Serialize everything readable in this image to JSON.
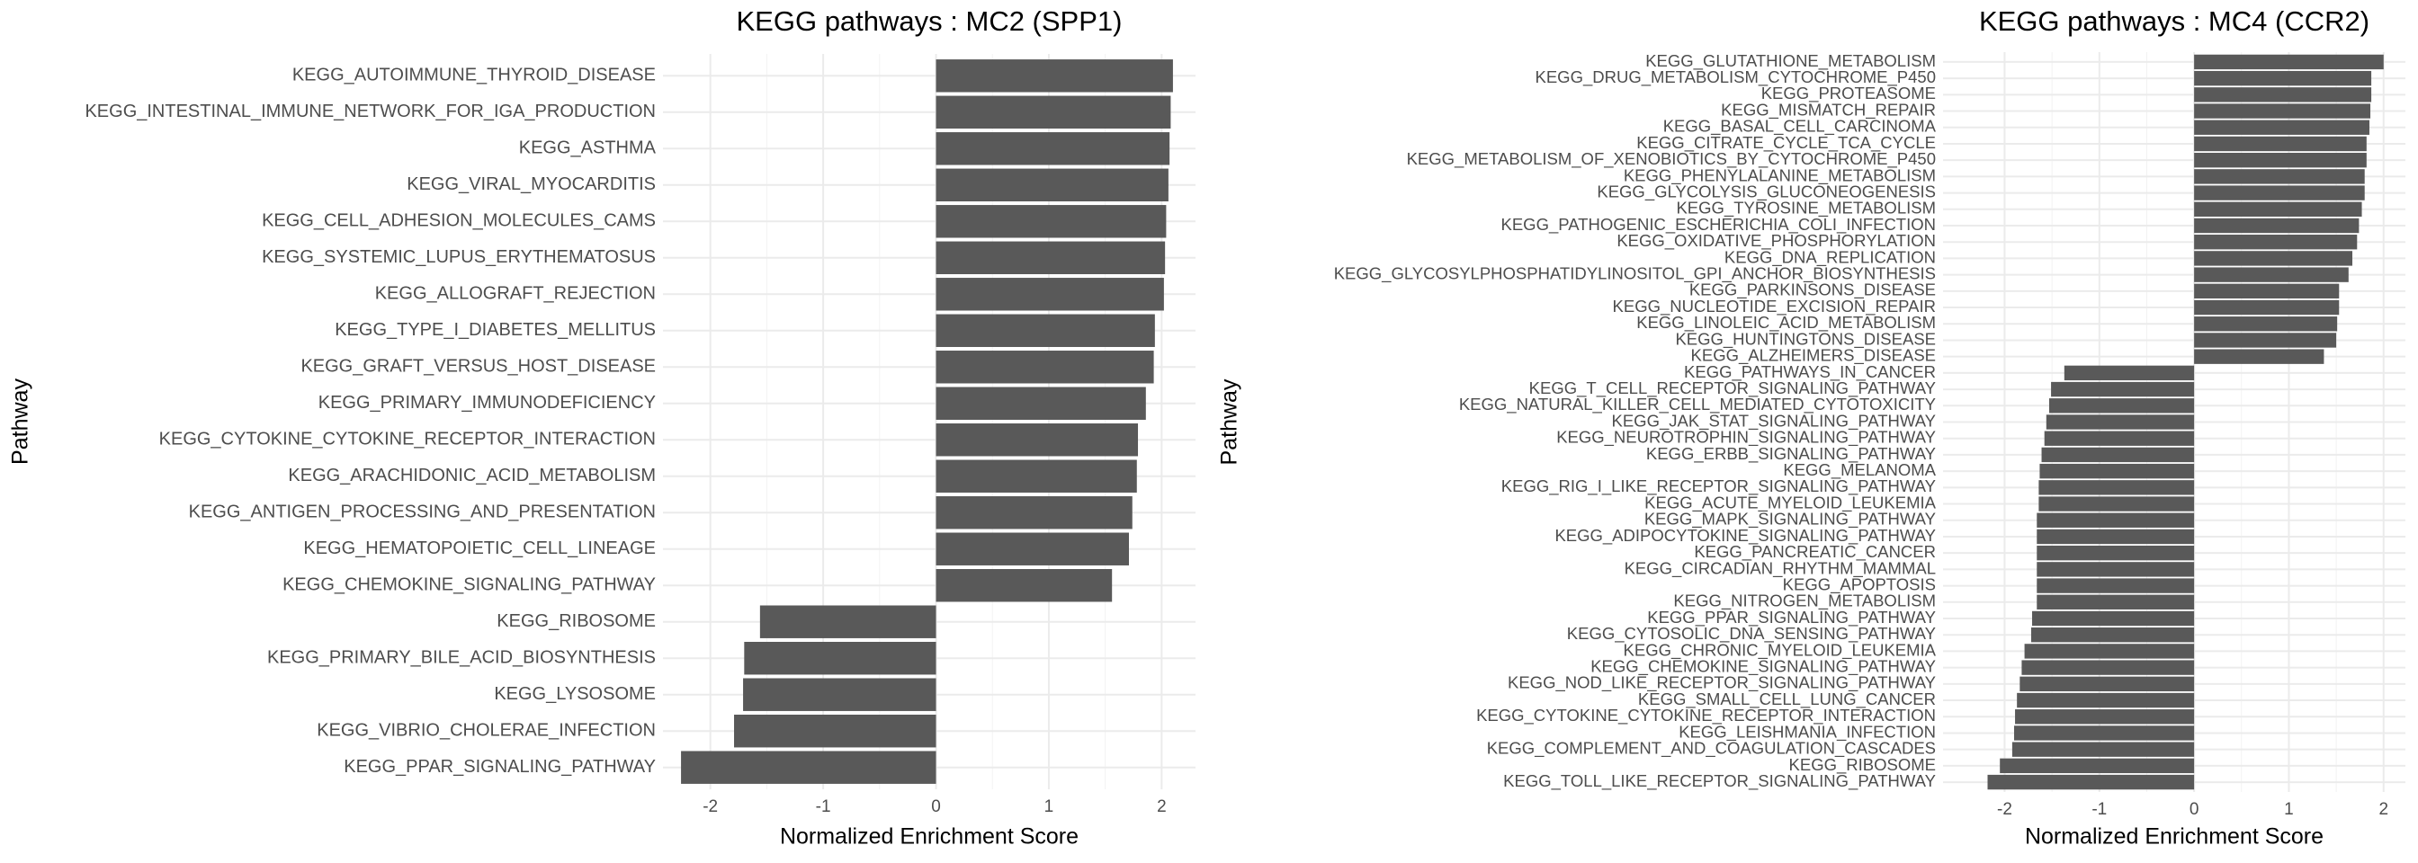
{
  "chart_data": [
    {
      "type": "bar",
      "orientation": "horizontal",
      "title": "KEGG pathways : MC2 (SPP1)",
      "x_label": "Normalized Enrichment Score",
      "y_label": "Pathway",
      "color": "#595959",
      "grid": true,
      "categories": [
        "KEGG_AUTOIMMUNE_THYROID_DISEASE",
        "KEGG_INTESTINAL_IMMUNE_NETWORK_FOR_IGA_PRODUCTION",
        "KEGG_ASTHMA",
        "KEGG_VIRAL_MYOCARDITIS",
        "KEGG_CELL_ADHESION_MOLECULES_CAMS",
        "KEGG_SYSTEMIC_LUPUS_ERYTHEMATOSUS",
        "KEGG_ALLOGRAFT_REJECTION",
        "KEGG_TYPE_I_DIABETES_MELLITUS",
        "KEGG_GRAFT_VERSUS_HOST_DISEASE",
        "KEGG_PRIMARY_IMMUNODEFICIENCY",
        "KEGG_CYTOKINE_CYTOKINE_RECEPTOR_INTERACTION",
        "KEGG_ARACHIDONIC_ACID_METABOLISM",
        "KEGG_ANTIGEN_PROCESSING_AND_PRESENTATION",
        "KEGG_HEMATOPOIETIC_CELL_LINEAGE",
        "KEGG_CHEMOKINE_SIGNALING_PATHWAY",
        "KEGG_RIBOSOME",
        "KEGG_PRIMARY_BILE_ACID_BIOSYNTHESIS",
        "KEGG_LYSOSOME",
        "KEGG_VIBRIO_CHOLERAE_INFECTION",
        "KEGG_PPAR_SIGNALING_PATHWAY"
      ],
      "values": [
        2.1,
        2.08,
        2.07,
        2.06,
        2.04,
        2.03,
        2.02,
        1.94,
        1.93,
        1.86,
        1.79,
        1.78,
        1.74,
        1.71,
        1.56,
        -1.56,
        -1.7,
        -1.71,
        -1.79,
        -2.26
      ],
      "xlim": [
        -2.42,
        2.3
      ],
      "xticks": [
        -2,
        -1,
        0,
        1,
        2
      ]
    },
    {
      "type": "bar",
      "orientation": "horizontal",
      "title": "KEGG pathways : MC4 (CCR2)",
      "x_label": "Normalized Enrichment Score",
      "y_label": "Pathway",
      "color": "#595959",
      "grid": true,
      "categories": [
        "KEGG_GLUTATHIONE_METABOLISM",
        "KEGG_DRUG_METABOLISM_CYTOCHROME_P450",
        "KEGG_PROTEASOME",
        "KEGG_MISMATCH_REPAIR",
        "KEGG_BASAL_CELL_CARCINOMA",
        "KEGG_CITRATE_CYCLE_TCA_CYCLE",
        "KEGG_METABOLISM_OF_XENOBIOTICS_BY_CYTOCHROME_P450",
        "KEGG_PHENYLALANINE_METABOLISM",
        "KEGG_GLYCOLYSIS_GLUCONEOGENESIS",
        "KEGG_TYROSINE_METABOLISM",
        "KEGG_PATHOGENIC_ESCHERICHIA_COLI_INFECTION",
        "KEGG_OXIDATIVE_PHOSPHORYLATION",
        "KEGG_DNA_REPLICATION",
        "KEGG_GLYCOSYLPHOSPHATIDYLINOSITOL_GPI_ANCHOR_BIOSYNTHESIS",
        "KEGG_PARKINSONS_DISEASE",
        "KEGG_NUCLEOTIDE_EXCISION_REPAIR",
        "KEGG_LINOLEIC_ACID_METABOLISM",
        "KEGG_HUNTINGTONS_DISEASE",
        "KEGG_ALZHEIMERS_DISEASE",
        "KEGG_PATHWAYS_IN_CANCER",
        "KEGG_T_CELL_RECEPTOR_SIGNALING_PATHWAY",
        "KEGG_NATURAL_KILLER_CELL_MEDIATED_CYTOTOXICITY",
        "KEGG_JAK_STAT_SIGNALING_PATHWAY",
        "KEGG_NEUROTROPHIN_SIGNALING_PATHWAY",
        "KEGG_ERBB_SIGNALING_PATHWAY",
        "KEGG_MELANOMA",
        "KEGG_RIG_I_LIKE_RECEPTOR_SIGNALING_PATHWAY",
        "KEGG_ACUTE_MYELOID_LEUKEMIA",
        "KEGG_MAPK_SIGNALING_PATHWAY",
        "KEGG_ADIPOCYTOKINE_SIGNALING_PATHWAY",
        "KEGG_PANCREATIC_CANCER",
        "KEGG_CIRCADIAN_RHYTHM_MAMMAL",
        "KEGG_APOPTOSIS",
        "KEGG_NITROGEN_METABOLISM",
        "KEGG_PPAR_SIGNALING_PATHWAY",
        "KEGG_CYTOSOLIC_DNA_SENSING_PATHWAY",
        "KEGG_CHRONIC_MYELOID_LEUKEMIA",
        "KEGG_CHEMOKINE_SIGNALING_PATHWAY",
        "KEGG_NOD_LIKE_RECEPTOR_SIGNALING_PATHWAY",
        "KEGG_SMALL_CELL_LUNG_CANCER",
        "KEGG_CYTOKINE_CYTOKINE_RECEPTOR_INTERACTION",
        "KEGG_LEISHMANIA_INFECTION",
        "KEGG_COMPLEMENT_AND_COAGULATION_CASCADES",
        "KEGG_RIBOSOME",
        "KEGG_TOLL_LIKE_RECEPTOR_SIGNALING_PATHWAY"
      ],
      "values": [
        2.0,
        1.87,
        1.87,
        1.86,
        1.85,
        1.82,
        1.82,
        1.8,
        1.8,
        1.77,
        1.74,
        1.72,
        1.67,
        1.63,
        1.53,
        1.53,
        1.51,
        1.5,
        1.37,
        -1.37,
        -1.51,
        -1.53,
        -1.56,
        -1.58,
        -1.61,
        -1.63,
        -1.64,
        -1.64,
        -1.66,
        -1.66,
        -1.66,
        -1.66,
        -1.66,
        -1.66,
        -1.71,
        -1.72,
        -1.79,
        -1.82,
        -1.84,
        -1.87,
        -1.89,
        -1.9,
        -1.92,
        -2.05,
        -2.18
      ],
      "xlim": [
        -2.65,
        2.23
      ],
      "xticks": [
        -2,
        -1,
        0,
        1,
        2
      ]
    }
  ]
}
